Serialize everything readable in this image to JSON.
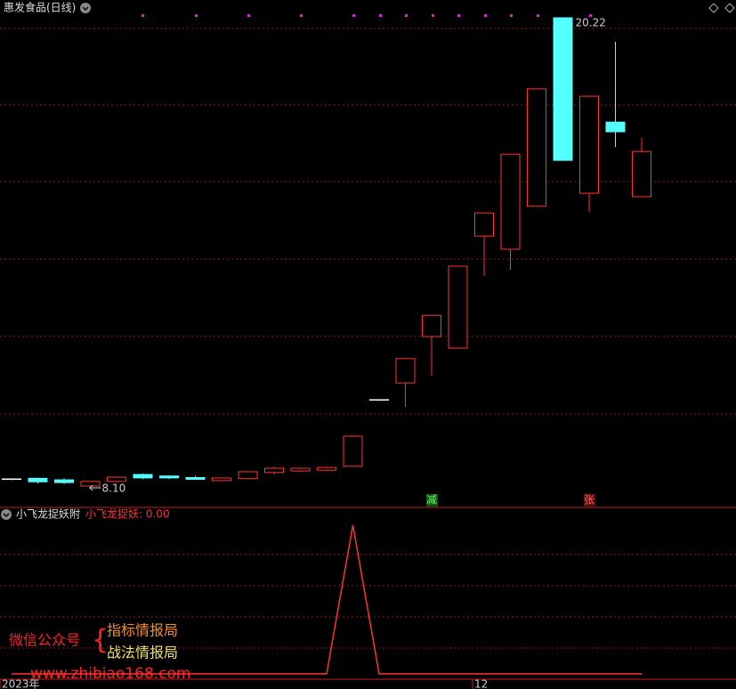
{
  "header": {
    "title": "惠发食品(日线)"
  },
  "chart_data": [
    {
      "type": "candlestick",
      "categories": [
        "2023年",
        null,
        null,
        null,
        null,
        null,
        null,
        null,
        null,
        null,
        null,
        null,
        null,
        null,
        null,
        null,
        null,
        null,
        "12",
        null,
        null,
        null,
        null,
        null,
        null
      ],
      "open": [
        8.28,
        8.3,
        8.26,
        8.1,
        8.22,
        8.4,
        8.36,
        8.32,
        8.24,
        8.29,
        8.45,
        8.49,
        8.51,
        8.61,
        10.33,
        10.77,
        11.97,
        11.67,
        14.57,
        14.23,
        15.34,
        20.22,
        15.68,
        17.52,
        15.59
      ],
      "high": [
        8.3,
        8.32,
        8.3,
        8.22,
        8.33,
        8.42,
        8.38,
        8.36,
        8.31,
        8.47,
        8.6,
        8.58,
        8.6,
        9.41,
        10.33,
        11.4,
        12.52,
        13.79,
        15.17,
        16.69,
        18.38,
        20.22,
        18.19,
        19.6,
        17.11
      ],
      "low": [
        8.25,
        8.17,
        8.15,
        8.1,
        8.2,
        8.28,
        8.28,
        8.26,
        8.24,
        8.29,
        8.4,
        8.47,
        8.49,
        8.6,
        10.33,
        10.15,
        10.96,
        11.67,
        13.54,
        13.7,
        15.34,
        16.53,
        15.2,
        16.88,
        15.59
      ],
      "close": [
        8.28,
        8.21,
        8.19,
        8.22,
        8.33,
        8.31,
        8.31,
        8.3,
        8.31,
        8.47,
        8.56,
        8.56,
        8.58,
        9.39,
        10.33,
        11.4,
        12.52,
        13.79,
        15.17,
        16.69,
        18.38,
        16.53,
        18.19,
        17.27,
        16.76
      ],
      "up_color": "#ff3232",
      "down_color": "#54ffff",
      "flat_color": "#ffffff",
      "max_label": "20.22",
      "min_label": "8.10",
      "signals": [
        null,
        null,
        null,
        null,
        null,
        null,
        null,
        null,
        null,
        null,
        null,
        null,
        null,
        null,
        null,
        null,
        "减",
        null,
        null,
        null,
        null,
        null,
        "张",
        null,
        null
      ]
    },
    {
      "type": "line",
      "title": "小飞龙捉妖附",
      "legend": "小飞龙捉妖: 0.00",
      "color": "#ff3232",
      "values": [
        0,
        0,
        0,
        0,
        0,
        0,
        0,
        0,
        0,
        0,
        0,
        0,
        0,
        100,
        0,
        0,
        0,
        0,
        0,
        0,
        0,
        0,
        0,
        0,
        0
      ]
    }
  ],
  "watermark": {
    "label": "微信公众号",
    "lines": [
      "指标情报局",
      "战法情报局"
    ],
    "url": "www.zhibiao168.com"
  }
}
